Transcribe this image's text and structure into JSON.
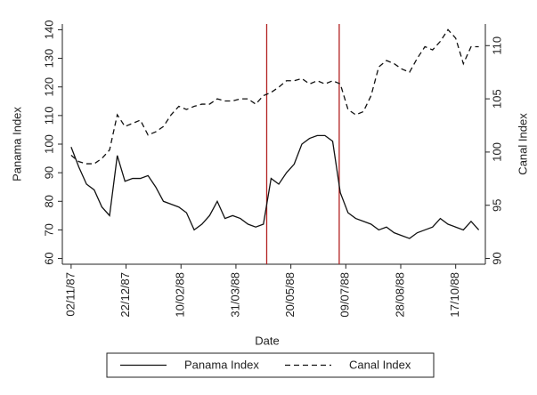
{
  "chart_data": {
    "type": "line",
    "x": [
      "1987-11-02",
      "1987-11-09",
      "1987-11-16",
      "1987-11-23",
      "1987-11-30",
      "1987-12-07",
      "1987-12-14",
      "1987-12-21",
      "1987-12-28",
      "1988-01-04",
      "1988-01-11",
      "1988-01-18",
      "1988-01-25",
      "1988-02-01",
      "1988-02-08",
      "1988-02-15",
      "1988-02-22",
      "1988-02-29",
      "1988-03-07",
      "1988-03-14",
      "1988-03-21",
      "1988-03-28",
      "1988-04-04",
      "1988-04-11",
      "1988-04-18",
      "1988-04-25",
      "1988-05-02",
      "1988-05-09",
      "1988-05-16",
      "1988-05-23",
      "1988-05-30",
      "1988-06-06",
      "1988-06-13",
      "1988-06-20",
      "1988-06-27",
      "1988-07-04",
      "1988-07-11",
      "1988-07-18",
      "1988-07-25",
      "1988-08-01",
      "1988-08-08",
      "1988-08-15",
      "1988-08-22",
      "1988-08-29",
      "1988-09-05",
      "1988-09-12",
      "1988-09-19",
      "1988-09-26",
      "1988-10-03",
      "1988-10-10",
      "1988-10-17",
      "1988-10-24",
      "1988-10-31",
      "1988-11-07"
    ],
    "series": [
      {
        "name": "Panama Index",
        "color": "#111111",
        "dash": "solid",
        "axis": "y",
        "values": [
          99,
          92,
          86,
          84,
          78,
          75,
          96,
          87,
          88,
          88,
          89,
          85,
          80,
          79,
          78,
          76,
          70,
          72,
          75,
          80,
          74,
          75,
          74,
          72,
          71,
          72,
          88,
          86,
          90,
          93,
          100,
          102,
          103,
          103,
          101,
          83,
          76,
          74,
          73,
          72,
          70,
          71,
          69,
          68,
          67,
          69,
          70,
          71,
          74,
          72,
          71,
          70,
          73,
          70
        ]
      },
      {
        "name": "Canal Index",
        "color": "#111111",
        "dash": "dashed",
        "axis": "y2",
        "values": [
          99.7,
          99.1,
          98.9,
          98.9,
          99.4,
          100.2,
          103.5,
          102.4,
          102.7,
          103,
          101.6,
          101.9,
          102.4,
          103.5,
          104.3,
          104,
          104.3,
          104.5,
          104.5,
          105,
          104.8,
          104.8,
          105,
          105,
          104.5,
          105.3,
          105.6,
          106.1,
          106.7,
          106.7,
          106.9,
          106.4,
          106.7,
          106.4,
          106.7,
          106.4,
          104,
          103.5,
          103.8,
          105.3,
          108,
          108.6,
          108.3,
          107.8,
          107.5,
          108.8,
          109.9,
          109.6,
          110.4,
          111.5,
          110.7,
          108.3,
          109.9,
          109.9
        ]
      }
    ],
    "xlabel": "Date",
    "ylabel": "Panama Index",
    "y2label": "Canal Index",
    "xlim": [
      "1987-10-25",
      "1988-11-13"
    ],
    "xticks": [
      {
        "value": "1987-11-02",
        "label": "02/11/87"
      },
      {
        "value": "1987-12-22",
        "label": "22/12/87"
      },
      {
        "value": "1988-02-10",
        "label": "10/02/88"
      },
      {
        "value": "1988-03-31",
        "label": "31/03/88"
      },
      {
        "value": "1988-05-20",
        "label": "20/05/88"
      },
      {
        "value": "1988-07-09",
        "label": "09/07/88"
      },
      {
        "value": "1988-08-28",
        "label": "28/08/88"
      },
      {
        "value": "1988-10-17",
        "label": "17/10/88"
      }
    ],
    "ylim": [
      58,
      142
    ],
    "yticks": [
      60,
      70,
      80,
      90,
      100,
      110,
      120,
      130,
      140
    ],
    "y2lim": [
      89.46,
      112.03
    ],
    "y2ticks": [
      90,
      95,
      100,
      105,
      110
    ],
    "vlines": [
      "1988-04-28",
      "1988-07-03"
    ],
    "vline_color": "#b22222",
    "legend": "bottom"
  }
}
